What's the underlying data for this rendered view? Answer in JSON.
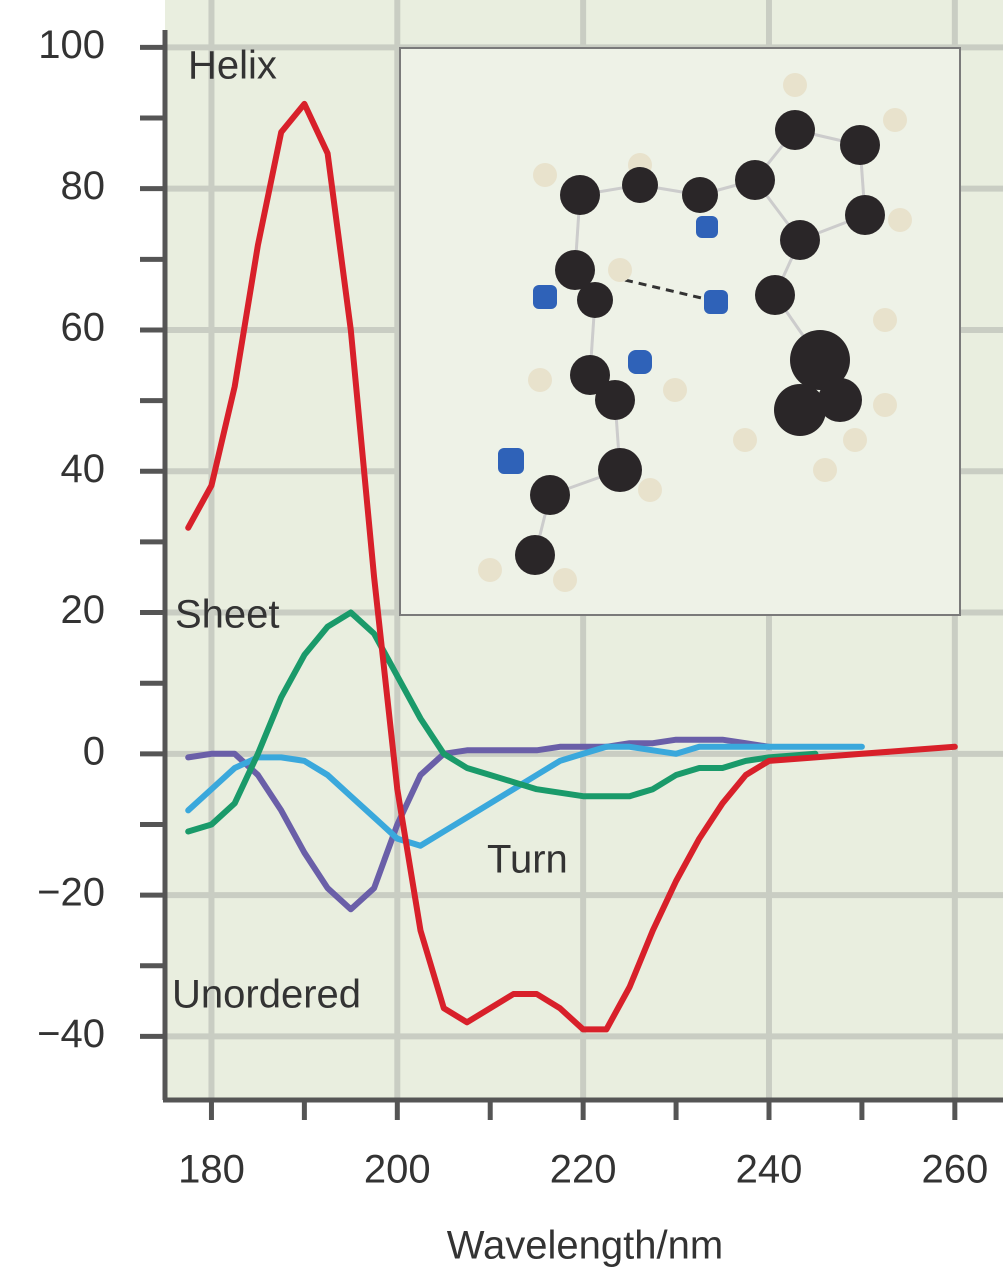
{
  "chart_data": {
    "type": "line",
    "x_label": "Wavelength/nm",
    "x": [
      177.5,
      180,
      182.5,
      185,
      187.5,
      190,
      192.5,
      195,
      197.5,
      200,
      202.5,
      205,
      207.5,
      210,
      212.5,
      215,
      217.5,
      220,
      222.5,
      225,
      227.5,
      230,
      232.5,
      235,
      237.5,
      240,
      245,
      250,
      255,
      260
    ],
    "series": [
      {
        "name": "Helix",
        "color": "#d8202a",
        "values": [
          32,
          38,
          52,
          72,
          88,
          92,
          85,
          60,
          25,
          -5,
          -25,
          -36,
          -38,
          -36,
          -34,
          -34,
          -36,
          -39,
          -39,
          -33,
          -25,
          -18,
          -12,
          -7,
          -3,
          -1,
          -0.5,
          0,
          0.5,
          1
        ]
      },
      {
        "name": "Sheet",
        "color": "#1a9a6a",
        "values": [
          -11,
          -10,
          -7,
          0,
          8,
          14,
          18,
          20,
          17,
          11,
          5,
          0,
          -2,
          -3,
          -4,
          -5,
          -5.5,
          -6,
          -6,
          -6,
          -5,
          -3,
          -2,
          -2,
          -1,
          -0.5,
          0,
          null,
          null,
          null
        ]
      },
      {
        "name": "Turn",
        "color": "#3aa8dc",
        "values": [
          -8,
          -5,
          -2,
          -0.5,
          -0.5,
          -1,
          -3,
          -6,
          -9,
          -12,
          -13,
          -11,
          -9,
          -7,
          -5,
          -3,
          -1,
          0,
          1,
          1,
          0.5,
          0,
          1,
          1,
          1,
          1,
          1,
          1,
          null,
          null
        ]
      },
      {
        "name": "Unordered",
        "color": "#6a5fa8",
        "values": [
          -0.5,
          0,
          0,
          -3,
          -8,
          -14,
          -19,
          -22,
          -19,
          -10,
          -3,
          0,
          0.5,
          0.5,
          0.5,
          0.5,
          1,
          1,
          1,
          1.5,
          1.5,
          2,
          2,
          2,
          1.5,
          1,
          null,
          null,
          null,
          null
        ]
      }
    ],
    "xlim": [
      175,
      264
    ],
    "xticks": [
      180,
      200,
      220,
      240,
      260
    ],
    "x_minor_ticks": [
      190,
      210,
      230,
      250
    ],
    "ylim": [
      -49,
      106
    ],
    "yticks": [
      {
        "value": -40,
        "label": "−40"
      },
      {
        "value": -20,
        "label": "−20"
      },
      0,
      20,
      40,
      60,
      80,
      100
    ],
    "y_minor_ticks": [
      -30,
      -10,
      10,
      30,
      50,
      70,
      90
    ],
    "grid": true
  }
}
